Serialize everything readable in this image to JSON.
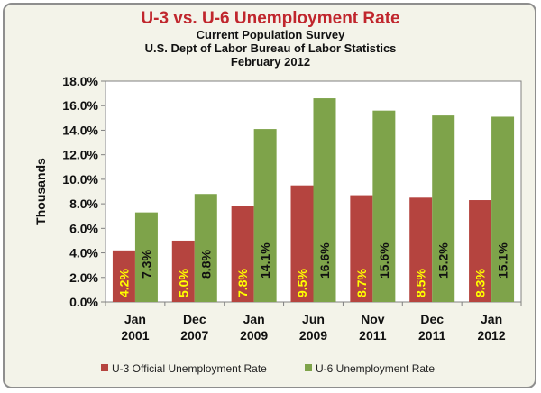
{
  "chart_data": {
    "type": "bar",
    "title": "U-3 vs. U-6 Unemployment Rate",
    "subtitle": [
      "Current Population Survey",
      "U.S. Dept of Labor Bureau of Labor Statistics",
      "February 2012"
    ],
    "ylabel": "Thousands",
    "xlabel": "",
    "ylim": [
      0,
      18
    ],
    "yticks": [
      "0.0%",
      "2.0%",
      "4.0%",
      "6.0%",
      "8.0%",
      "10.0%",
      "12.0%",
      "14.0%",
      "16.0%",
      "18.0%"
    ],
    "grid": false,
    "legend": "bottom",
    "categories": [
      [
        "Jan",
        "2001"
      ],
      [
        "Dec",
        "2007"
      ],
      [
        "Jan",
        "2009"
      ],
      [
        "Jun",
        "2009"
      ],
      [
        "Nov",
        "2011"
      ],
      [
        "Dec",
        "2011"
      ],
      [
        "Jan",
        "2012"
      ]
    ],
    "series": [
      {
        "name": "U-3 Official Unemployment Rate",
        "color": "#b5443f",
        "label_color": "#ffff00",
        "values": [
          4.2,
          5.0,
          7.8,
          9.5,
          8.7,
          8.5,
          8.3
        ],
        "labels": [
          "4.2%",
          "5.0%",
          "7.8%",
          "9.5%",
          "8.7%",
          "8.5%",
          "8.3%"
        ]
      },
      {
        "name": "U-6 Unemployment Rate",
        "color": "#7ea34a",
        "label_color": "#111111",
        "values": [
          7.3,
          8.8,
          14.1,
          16.6,
          15.6,
          15.2,
          15.1
        ],
        "labels": [
          "7.3%",
          "8.8%",
          "14.1%",
          "16.6%",
          "15.6%",
          "15.2%",
          "15.1%"
        ]
      }
    ],
    "colors": {
      "plot_background": "#ffffff",
      "frame_background": "#f3f3e9",
      "title": "#c0262d"
    }
  }
}
